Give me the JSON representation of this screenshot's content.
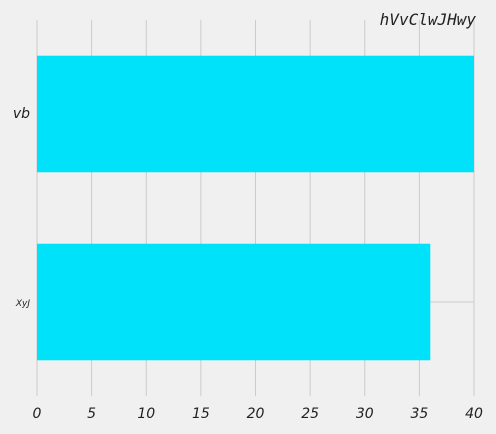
{
  "chart_data": {
    "type": "bar",
    "orientation": "horizontal",
    "title": "hVvClwJHwy",
    "categories": [
      "vb",
      "XyJ"
    ],
    "values": [
      40,
      36
    ],
    "xlim": [
      0,
      40
    ],
    "xticks": [
      0,
      5,
      10,
      15,
      20,
      25,
      30,
      35,
      40
    ],
    "xlabel": "",
    "ylabel": "",
    "grid": "x",
    "bar_color": "#00e1fa",
    "background": "#f0f0f0",
    "grid_color": "#cbcbcb"
  }
}
